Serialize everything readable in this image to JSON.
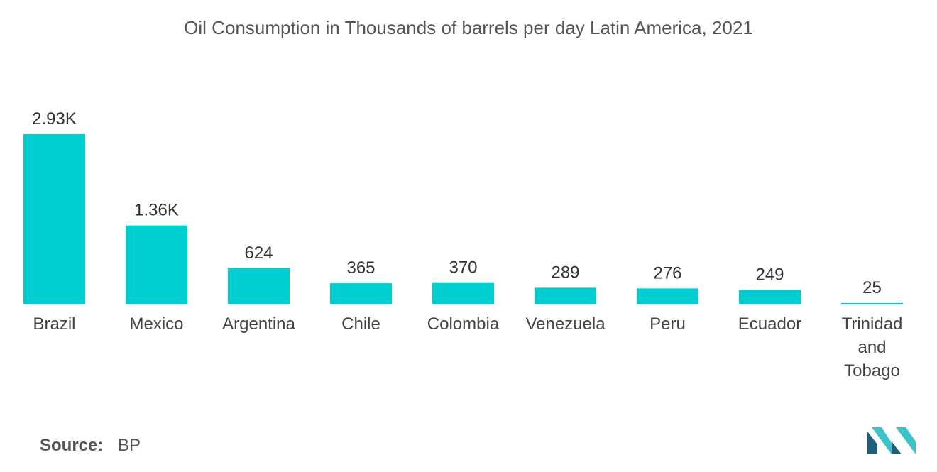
{
  "title": "Oil Consumption in Thousands of barrels per day Latin America, 2021",
  "source": {
    "label": "Source:",
    "value": "BP"
  },
  "colors": {
    "bar": "#00CED1",
    "logo_dark": "#1f5f7a",
    "logo_light": "#3cc3c9"
  },
  "logo": {
    "icon": "mordor-intelligence-logo-icon"
  },
  "chart_data": {
    "type": "bar",
    "title": "Oil Consumption in Thousands of barrels per day Latin America, 2021",
    "categories": [
      "Brazil",
      "Mexico",
      "Argentina",
      "Chile",
      "Colombia",
      "Venezuela",
      "Peru",
      "Ecuador",
      "Trinidad and Tobago"
    ],
    "category_lines": [
      [
        "Brazil"
      ],
      [
        "Mexico"
      ],
      [
        "Argentina"
      ],
      [
        "Chile"
      ],
      [
        "Colombia"
      ],
      [
        "Venezuela"
      ],
      [
        "Peru"
      ],
      [
        "Ecuador"
      ],
      [
        "Trinidad",
        "and",
        "Tobago"
      ]
    ],
    "values": [
      2930,
      1360,
      624,
      365,
      370,
      289,
      276,
      249,
      25
    ],
    "data_labels": [
      "2.93K",
      "1.36K",
      "624",
      "365",
      "370",
      "289",
      "276",
      "249",
      "25"
    ],
    "xlabel": "",
    "ylabel": "",
    "ylim": [
      0,
      2930
    ],
    "grid": false,
    "legend": "none"
  }
}
